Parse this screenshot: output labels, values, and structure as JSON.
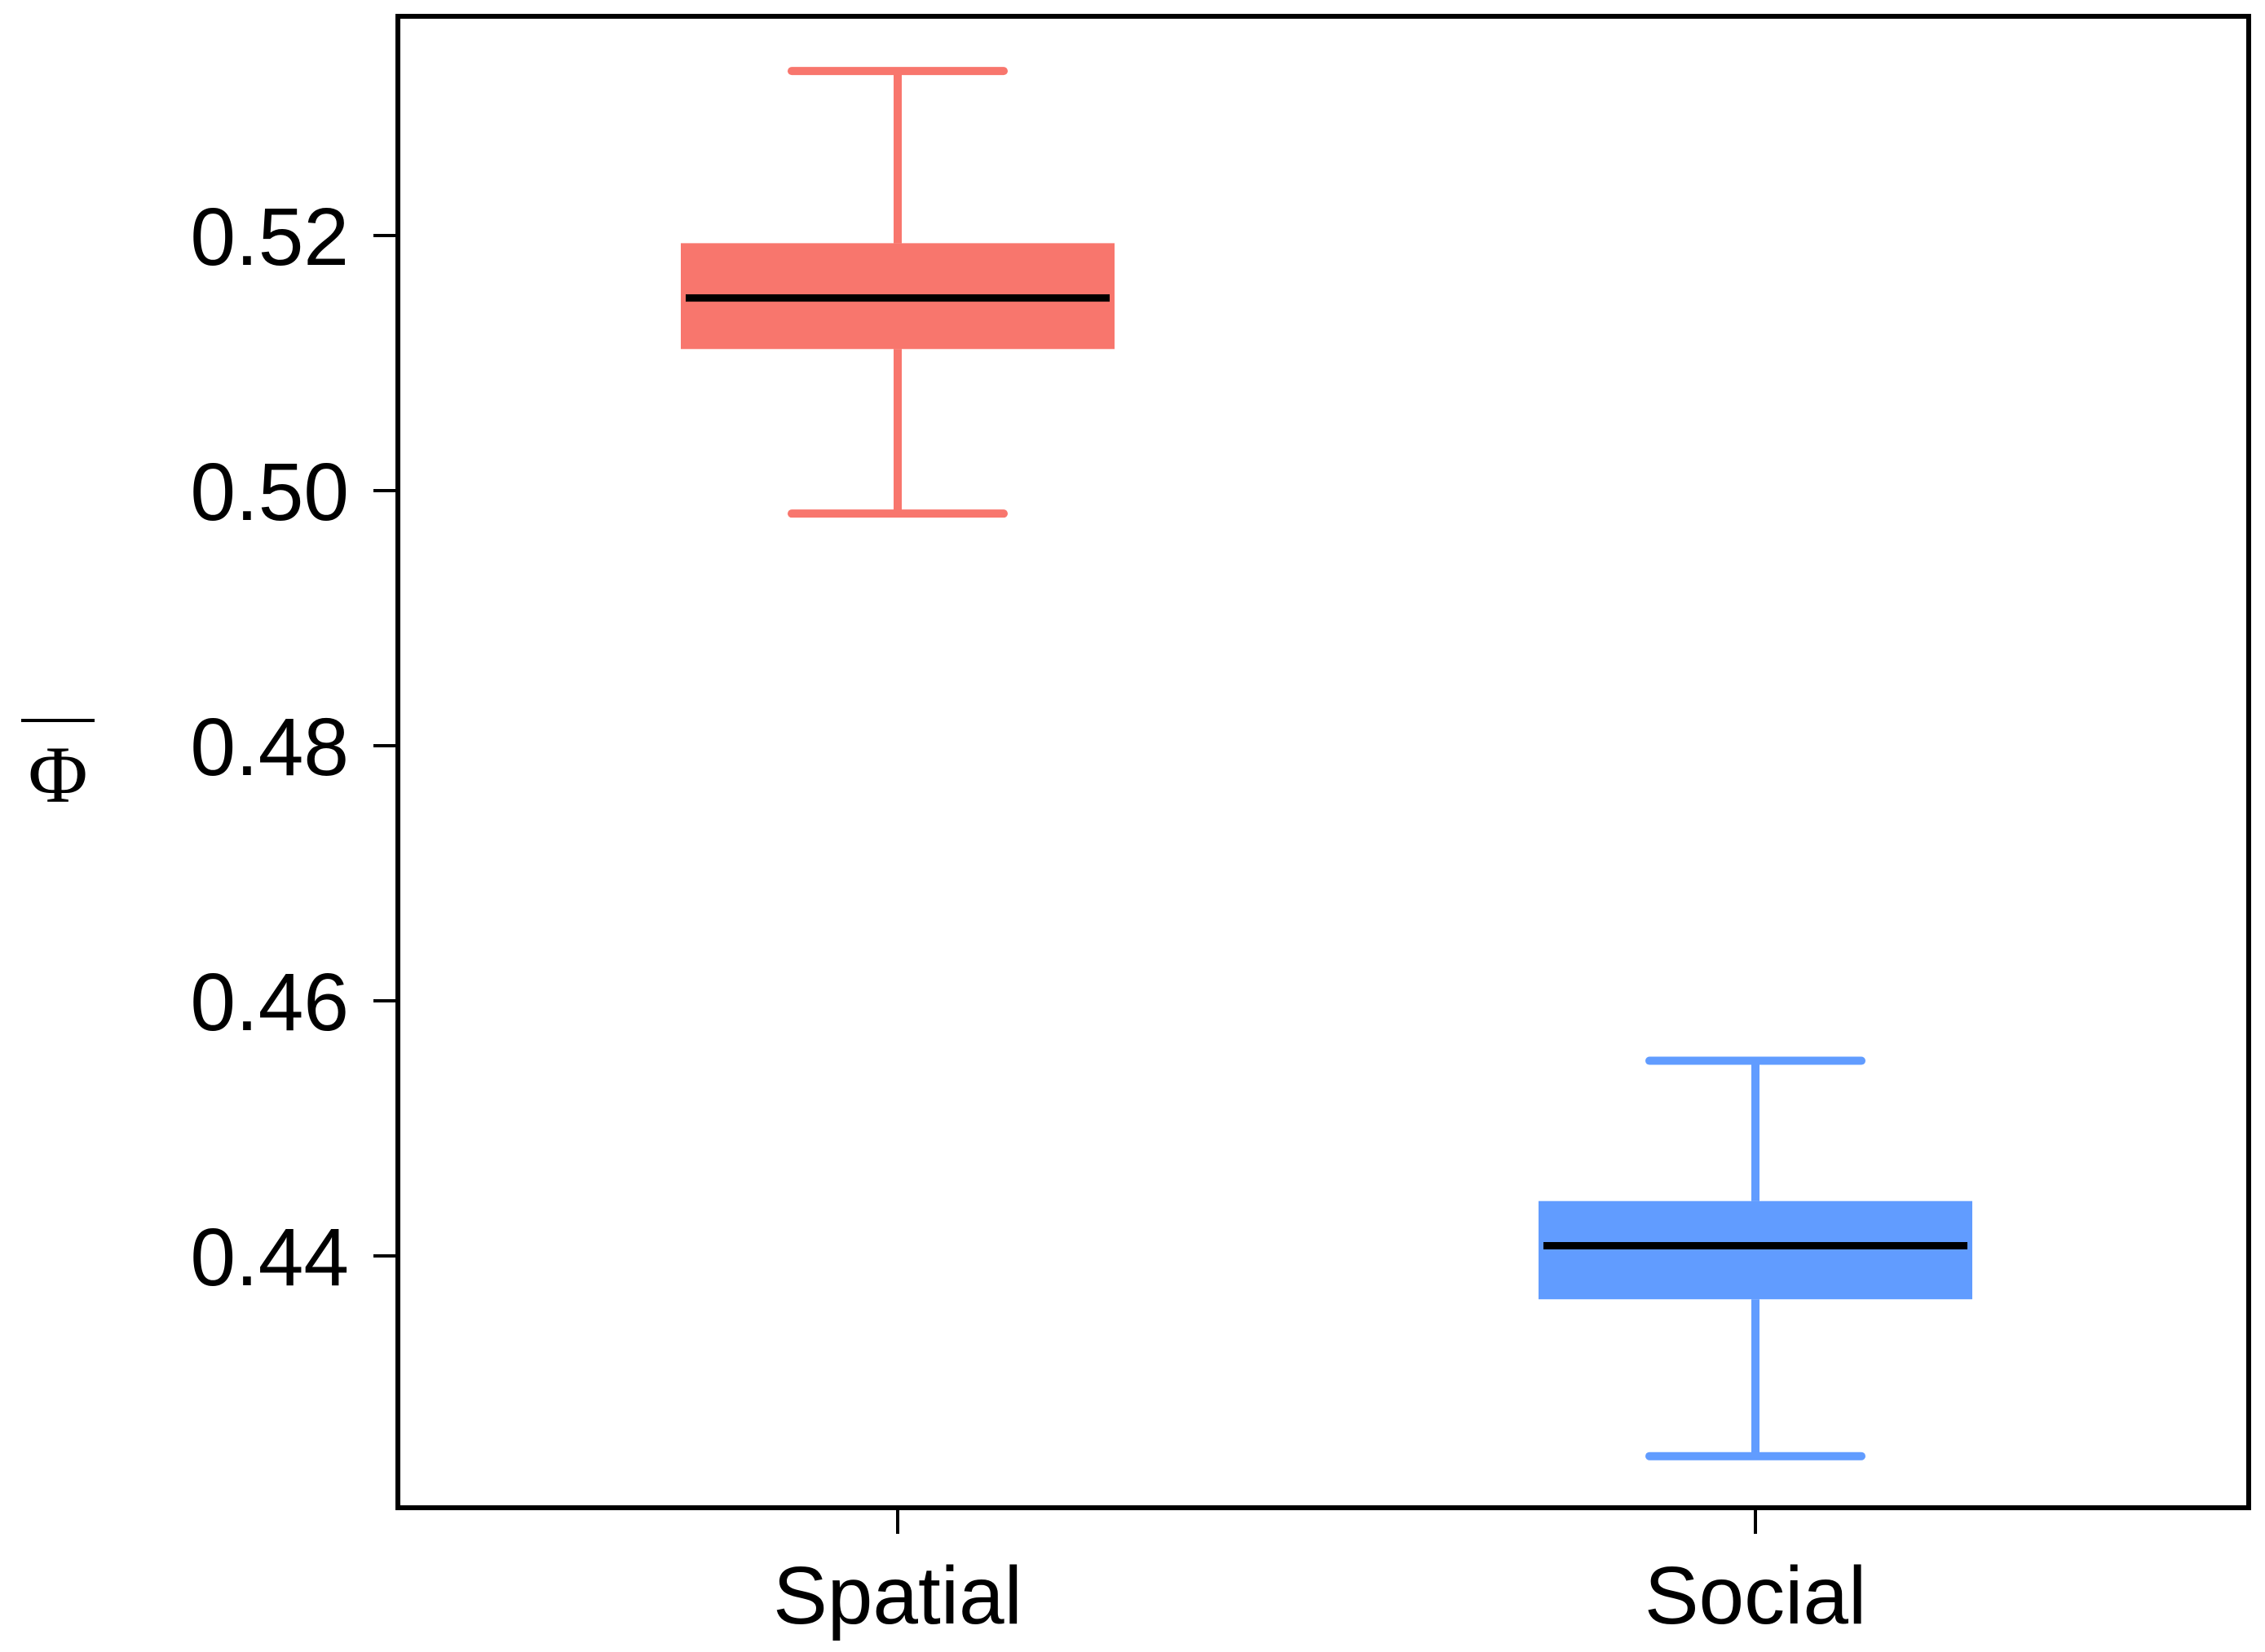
{
  "chart_data": {
    "type": "box",
    "title": "",
    "xlabel": "",
    "ylabel": "Φ",
    "ylabel_overline": true,
    "ylim": [
      0.42,
      0.5375
    ],
    "yticks": [
      0.44,
      0.46,
      0.48,
      0.5,
      0.52
    ],
    "ytick_labels": [
      "0.44",
      "0.46",
      "0.48",
      "0.50",
      "0.52"
    ],
    "categories": [
      "Spatial",
      "Social"
    ],
    "series": [
      {
        "name": "Spatial",
        "whisker_low": 0.4982,
        "q1": 0.5111,
        "median": 0.5151,
        "q3": 0.5194,
        "whisker_high": 0.5329,
        "color": "#F8766D"
      },
      {
        "name": "Social",
        "whisker_low": 0.4243,
        "q1": 0.4366,
        "median": 0.4408,
        "q3": 0.4443,
        "whisker_high": 0.4553,
        "color": "#619CFF"
      }
    ],
    "grid": false,
    "legend": "none"
  }
}
